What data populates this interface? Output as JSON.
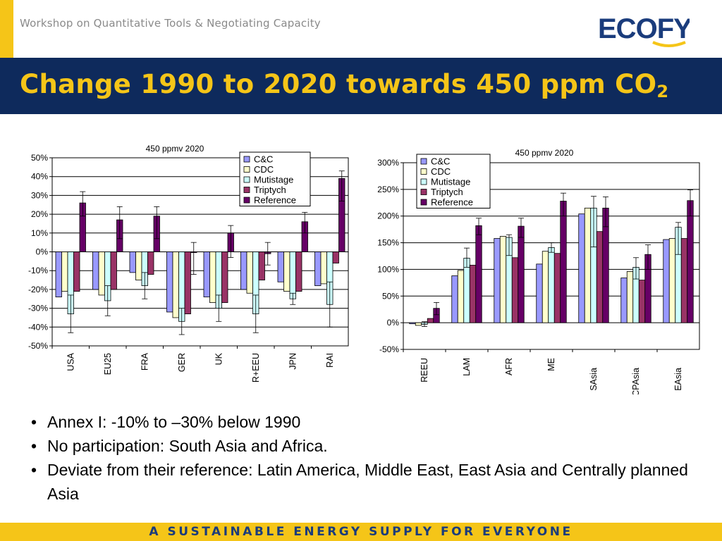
{
  "header": {
    "workshop": "Workshop on Quantitative Tools & Negotiating Capacity",
    "logo_left": "ECO",
    "logo_right": "FYS",
    "title_main": "Change 1990 to 2020 towards 450 ppm CO",
    "title_sub": "2"
  },
  "colors": {
    "navy": "#0e2a5c",
    "yellow": "#f5c518",
    "logo_blue": "#1a3c7c",
    "series": [
      "#9999ff",
      "#ffffcc",
      "#ccffff",
      "#993366",
      "#660066"
    ]
  },
  "chart_data": [
    {
      "type": "bar",
      "title": "450 ppmv 2020",
      "categories": [
        "USA",
        "EU25",
        "FRA",
        "GER",
        "UK",
        "R+EEU",
        "JPN",
        "RAI"
      ],
      "ylim": [
        -50,
        50
      ],
      "yticks": [
        50,
        40,
        30,
        20,
        10,
        0,
        -10,
        -20,
        -30,
        -40,
        -50
      ],
      "ytick_labels": [
        "50%",
        "40%",
        "30%",
        "20%",
        "10%",
        "0%",
        "-10%",
        "-20%",
        "-30%",
        "-40%",
        "-50%"
      ],
      "legend_position": "top-right",
      "grid": true,
      "series": [
        {
          "name": "C&C",
          "values": [
            -24,
            -20,
            -11,
            -32,
            -24,
            -20,
            -16,
            -18
          ]
        },
        {
          "name": "CDC",
          "values": [
            -21,
            -23,
            -15,
            -35,
            -27,
            -22,
            -21,
            -17
          ]
        },
        {
          "name": "Mutistage",
          "values": [
            -33,
            -26,
            -18,
            -37,
            -30,
            -33,
            -25,
            -28
          ]
        },
        {
          "name": "Triptych",
          "values": [
            -21,
            -20,
            -12,
            -33,
            -27,
            -15,
            -21,
            -6
          ]
        },
        {
          "name": "Reference",
          "values": [
            26,
            17,
            19,
            0,
            10,
            -1,
            16,
            39
          ]
        }
      ],
      "error_bars": {
        "Mutistage": [
          [
            -43,
            -23
          ],
          [
            -34,
            -18
          ],
          [
            -25,
            -11
          ],
          [
            -44,
            -30
          ],
          [
            -37,
            -23
          ],
          [
            -43,
            -23
          ],
          [
            -28,
            -22
          ],
          [
            -40,
            -16
          ]
        ],
        "Reference": [
          [
            19,
            32
          ],
          [
            7,
            24
          ],
          [
            7,
            24
          ],
          [
            -12,
            5
          ],
          [
            -3,
            14
          ],
          [
            -7,
            5
          ],
          [
            10,
            21
          ],
          [
            27,
            43
          ]
        ]
      }
    },
    {
      "type": "bar",
      "title": "450 ppmv 2020",
      "categories": [
        "REEU",
        "LAM",
        "AFR",
        "ME",
        "SAsia",
        "CPAsia",
        "EAsia"
      ],
      "ylim": [
        -50,
        300
      ],
      "yticks": [
        300,
        250,
        200,
        150,
        100,
        50,
        0,
        -50
      ],
      "ytick_labels": [
        "300%",
        "250%",
        "200%",
        "150%",
        "100%",
        "50%",
        "0%",
        "-50%"
      ],
      "legend_position": "top-left",
      "grid": true,
      "series": [
        {
          "name": "C&C",
          "values": [
            -2,
            88,
            158,
            110,
            204,
            84,
            156
          ]
        },
        {
          "name": "CDC",
          "values": [
            -5,
            98,
            162,
            134,
            215,
            96,
            158
          ]
        },
        {
          "name": "Mutistage",
          "values": [
            -3,
            121,
            160,
            141,
            215,
            104,
            179
          ]
        },
        {
          "name": "Triptych",
          "values": [
            8,
            108,
            122,
            130,
            171,
            80,
            158
          ]
        },
        {
          "name": "Reference",
          "values": [
            27,
            182,
            181,
            228,
            215,
            128,
            229
          ]
        }
      ],
      "error_bars": {
        "Mutistage": [
          [
            -7,
            2
          ],
          [
            104,
            140
          ],
          [
            126,
            165
          ],
          [
            132,
            150
          ],
          [
            142,
            237
          ],
          [
            82,
            122
          ],
          [
            128,
            188
          ]
        ],
        "Reference": [
          [
            15,
            38
          ],
          [
            165,
            196
          ],
          [
            160,
            196
          ],
          [
            200,
            243
          ],
          [
            180,
            236
          ],
          [
            100,
            146
          ],
          [
            200,
            249
          ]
        ]
      }
    }
  ],
  "bullets": [
    "Annex I: -10% to –30% below 1990",
    "No participation: South Asia and Africa.",
    "Deviate from their reference: Latin America, Middle East, East Asia and Centrally planned Asia"
  ],
  "footer": {
    "tagline": "A SUSTAINABLE ENERGY SUPPLY FOR EVERYONE"
  }
}
